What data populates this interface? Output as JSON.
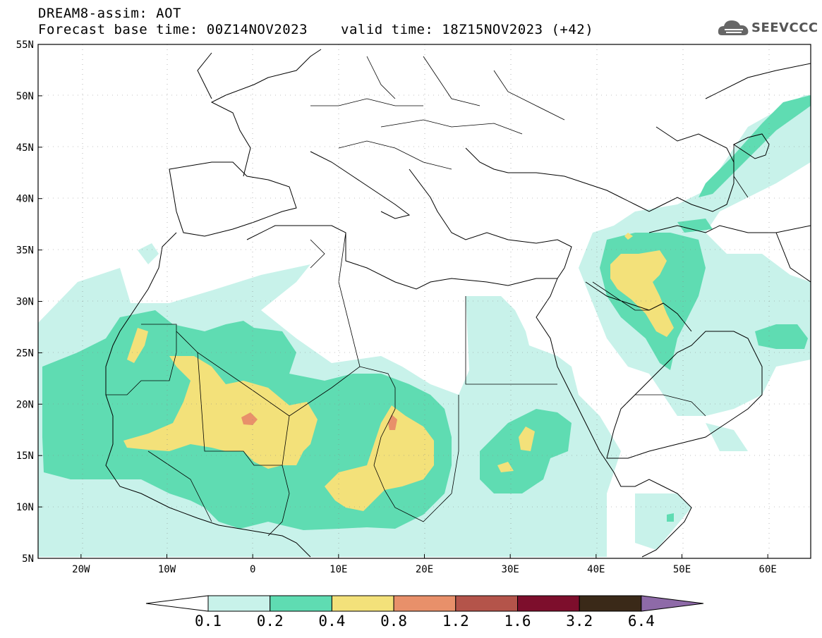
{
  "header": {
    "title": "DREAM8-assim: AOT",
    "base_time": "Forecast base time: 00Z14NOV2023",
    "valid_time": "valid time: 18Z15NOV2023 (+42)"
  },
  "logo": {
    "text": "SEEVCCC",
    "icon": "cloud-logo-icon"
  },
  "map": {
    "lat_labels": [
      "55N",
      "50N",
      "45N",
      "40N",
      "35N",
      "30N",
      "25N",
      "20N",
      "15N",
      "10N",
      "5N"
    ],
    "lon_labels": [
      "20W",
      "10W",
      "0",
      "10E",
      "20E",
      "30E",
      "40E",
      "50E",
      "60E"
    ],
    "extent": {
      "lon_min": -25,
      "lon_max": 65,
      "lat_min": 5,
      "lat_max": 55
    }
  },
  "colorbar": {
    "levels": [
      "0.1",
      "0.2",
      "0.4",
      "0.8",
      "1.2",
      "1.6",
      "3.2",
      "6.4"
    ],
    "colors": {
      "under": "#ffffff",
      "bins": [
        "#c8f2ea",
        "#5fdcb2",
        "#f3e17a",
        "#e8906a",
        "#b4544a",
        "#7d0e2c",
        "#3a2918"
      ],
      "over": "#8e6aa8"
    }
  }
}
